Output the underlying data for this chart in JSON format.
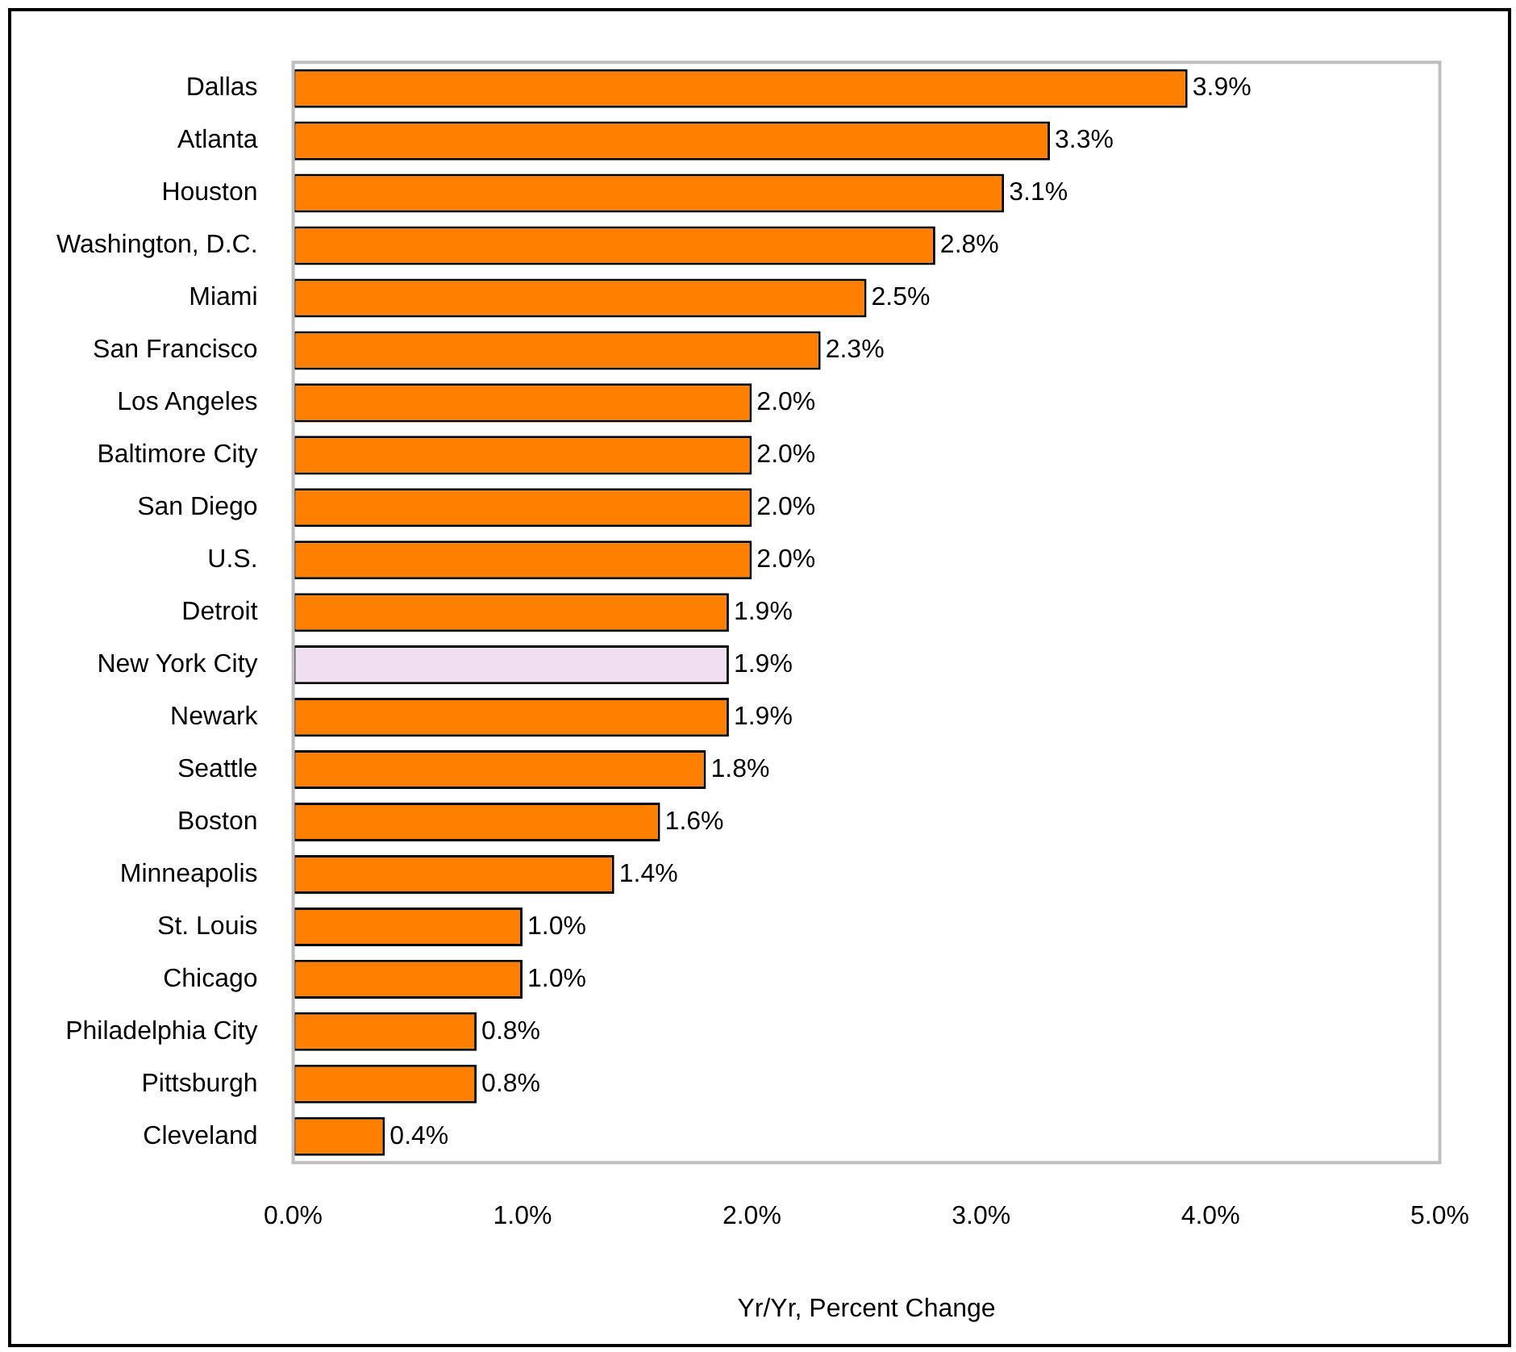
{
  "chart_data": {
    "type": "bar",
    "orientation": "horizontal",
    "xlabel": "Yr/Yr, Percent Change",
    "categories": [
      "Dallas",
      "Atlanta",
      "Houston",
      "Washington, D.C.",
      "Miami",
      "San Francisco",
      "Los Angeles",
      "Baltimore City",
      "San Diego",
      "U.S.",
      "Detroit",
      "New York City",
      "Newark",
      "Seattle",
      "Boston",
      "Minneapolis",
      "St. Louis",
      "Chicago",
      "Philadelphia City",
      "Pittsburgh",
      "Cleveland"
    ],
    "values": [
      3.9,
      3.3,
      3.1,
      2.8,
      2.5,
      2.3,
      2.0,
      2.0,
      2.0,
      2.0,
      1.9,
      1.9,
      1.9,
      1.8,
      1.6,
      1.4,
      1.0,
      1.0,
      0.8,
      0.8,
      0.4
    ],
    "value_labels": [
      "3.9%",
      "3.3%",
      "3.1%",
      "2.8%",
      "2.5%",
      "2.3%",
      "2.0%",
      "2.0%",
      "2.0%",
      "2.0%",
      "1.9%",
      "1.9%",
      "1.9%",
      "1.8%",
      "1.6%",
      "1.4%",
      "1.0%",
      "1.0%",
      "0.8%",
      "0.8%",
      "0.4%"
    ],
    "colors": [
      "#ff8000",
      "#ff8000",
      "#ff8000",
      "#ff8000",
      "#ff8000",
      "#ff8000",
      "#ff8000",
      "#ff8000",
      "#ff8000",
      "#ff8000",
      "#ff8000",
      "#f0dff0",
      "#ff8000",
      "#ff8000",
      "#ff8000",
      "#ff8000",
      "#ff8000",
      "#ff8000",
      "#ff8000",
      "#ff8000",
      "#ff8000"
    ],
    "xlim": [
      0,
      5
    ],
    "xticks": [
      {
        "value": 0,
        "label": "0.0%"
      },
      {
        "value": 1,
        "label": "1.0%"
      },
      {
        "value": 2,
        "label": "2.0%"
      },
      {
        "value": 3,
        "label": "3.0%"
      },
      {
        "value": 4,
        "label": "4.0%"
      },
      {
        "value": 5,
        "label": "5.0%"
      }
    ],
    "grid": false,
    "legend": false
  }
}
